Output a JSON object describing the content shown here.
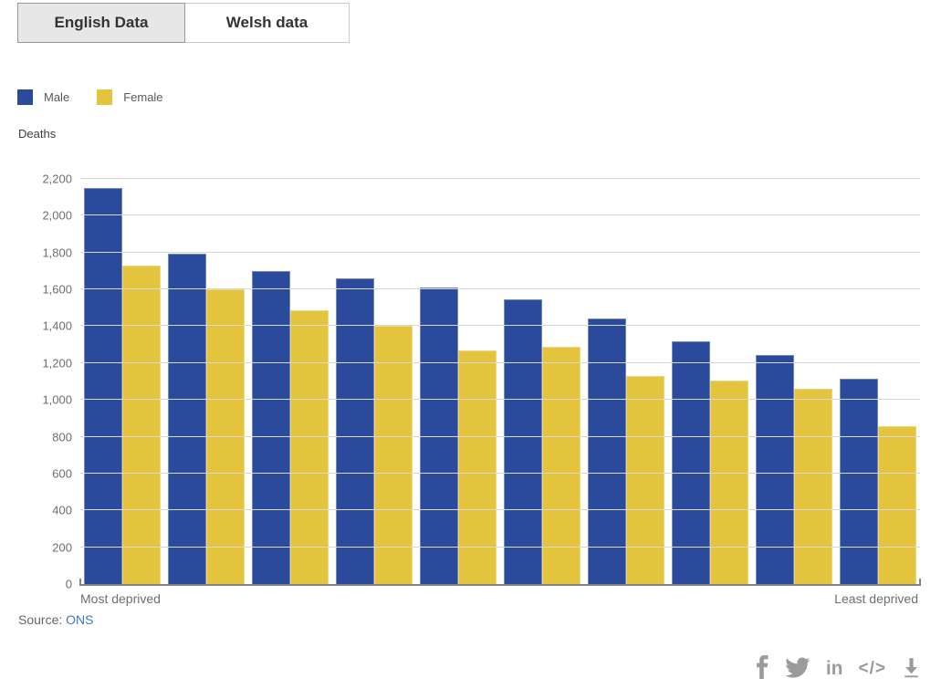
{
  "tabs": [
    {
      "label": "English Data",
      "active": true
    },
    {
      "label": "Welsh data",
      "active": false
    }
  ],
  "legend": [
    {
      "label": "Male",
      "color": "#2b4a9c"
    },
    {
      "label": "Female",
      "color": "#e4c43c"
    }
  ],
  "axis_title": "Deaths",
  "source": {
    "prefix": "Source: ",
    "link_label": "ONS"
  },
  "share": {
    "icons": [
      "facebook-icon",
      "twitter-icon",
      "linkedin-icon",
      "embed-code-icon",
      "download-icon"
    ],
    "linkedin_text": "in",
    "embed_text": "</>"
  },
  "chart_data": {
    "type": "bar",
    "title": "",
    "ylabel": "Deaths",
    "categories": [
      "Most deprived",
      "",
      "",
      "",
      "",
      "",
      "",
      "",
      "",
      "Least deprived"
    ],
    "x_axis_left_label": "Most deprived",
    "x_axis_right_label": "Least deprived",
    "series": [
      {
        "name": "Male",
        "color": "#2b4a9c",
        "values": [
          2150,
          1795,
          1700,
          1660,
          1610,
          1545,
          1440,
          1320,
          1245,
          1115
        ]
      },
      {
        "name": "Female",
        "color": "#e4c43c",
        "values": [
          1730,
          1600,
          1485,
          1400,
          1270,
          1290,
          1130,
          1105,
          1060,
          855
        ]
      }
    ],
    "ylim": [
      0,
      2200
    ],
    "ytick_step": 200,
    "ytick_labels": [
      "0",
      "200",
      "400",
      "600",
      "800",
      "1,000",
      "1,200",
      "1,400",
      "1,600",
      "1,800",
      "2,000",
      "2,200"
    ],
    "grid": true,
    "legend_position": "top-left",
    "colors": {
      "gridline": "#d9d9d9",
      "axis_line": "#848484",
      "tick_text": "#6e6e6e",
      "link": "#4276ba"
    }
  }
}
